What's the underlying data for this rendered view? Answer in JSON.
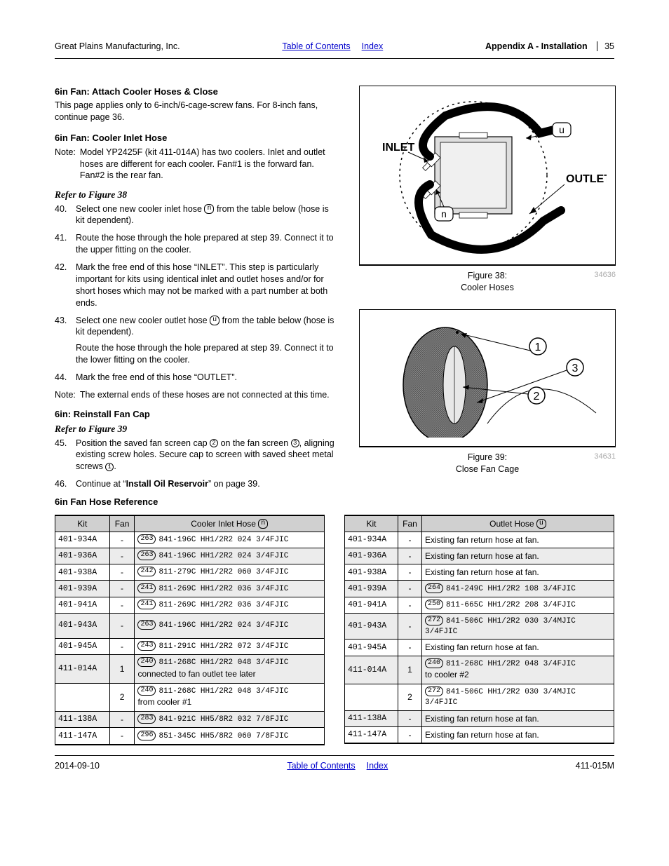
{
  "header": {
    "left": "Great Plains Manufacturing, Inc.",
    "toc_link": "Table of Contents",
    "index_link": "Index",
    "right_title": "Appendix A - Installation",
    "page_num": "35"
  },
  "left_col": {
    "sect1_title": "6in Fan: Attach Cooler Hoses & Close",
    "sect1_body": "This page applies only to 6-inch/6-cage-screw fans. For 8-inch fans, continue page 36.",
    "sect2_title": "6in Fan: Cooler Inlet Hose",
    "note1_label": "Note:",
    "note1_body": "Model YP2425F (kit 411-014A) has two coolers. Inlet and outlet hoses are different for each cooler. Fan#1 is the forward fan.\nFan#2 is the rear fan.",
    "refer38": "Refer to Figure 38",
    "steps1": [
      {
        "n": "40.",
        "t_pre": "Select one new cooler inlet hose ",
        "circ": "n",
        "t_post": " from the table below (hose is kit dependent)."
      },
      {
        "n": "41.",
        "t_pre": "Route the hose through the hole prepared at step 39. Connect it to the upper fitting on the cooler.",
        "circ": "",
        "t_post": ""
      },
      {
        "n": "42.",
        "t_pre": "Mark the free end of this hose “INLET”. This step is particularly important for kits using identical inlet and outlet hoses and/or for short hoses which may not be marked with a part number at both ends.",
        "circ": "",
        "t_post": ""
      },
      {
        "n": "43.",
        "t_pre": "Select one new cooler outlet hose ",
        "circ": "u",
        "t_post": " from the table below (hose is kit dependent).",
        "extra": "Route the hose through the hole prepared at step 39. Connect it to the lower fitting on the cooler."
      },
      {
        "n": "44.",
        "t_pre": "Mark the free end of this hose “OUTLET”.",
        "circ": "",
        "t_post": ""
      }
    ],
    "note2_label": "Note:",
    "note2_body": "The external ends of these hoses are not connected at this time.",
    "sect3_title": "6in: Reinstall Fan Cap",
    "refer39": "Refer to Figure 39",
    "steps2": [
      {
        "n": "45.",
        "t": "Position the saved fan screen cap ② on the fan screen ③, aligning existing screw holes. Secure cap to screen with saved sheet metal screws ①."
      },
      {
        "n": "46.",
        "t_pre": "Continue at “",
        "bold": "Install Oil Reservoir",
        "t_post": "” on page 39."
      }
    ],
    "sect4_title": "6in Fan Hose Reference"
  },
  "fig38": {
    "inlet_label": "INLET",
    "outlet_label": "OUTLET",
    "n_label": "n",
    "u_label": "u",
    "caption_title": "Figure 38:",
    "caption_sub": "Cooler Hoses",
    "id": "34636"
  },
  "fig39": {
    "l1": "1",
    "l2": "2",
    "l3": "3",
    "caption_title": "Figure 39:",
    "caption_sub": "Close Fan Cage",
    "id": "34631"
  },
  "table_left": {
    "headers": [
      "Kit",
      "Fan",
      "Cooler Inlet Hose ",
      "n"
    ],
    "rows": [
      {
        "kit": "401-934A",
        "fan": "-",
        "pill": "263",
        "hose": "841-196C HH1/2R2 024 3/4FJIC",
        "shade": false
      },
      {
        "kit": "401-936A",
        "fan": "-",
        "pill": "263",
        "hose": "841-196C HH1/2R2 024 3/4FJIC",
        "shade": true
      },
      {
        "kit": "401-938A",
        "fan": "-",
        "pill": "242",
        "hose": "811-279C HH1/2R2 060 3/4FJIC",
        "shade": false
      },
      {
        "kit": "401-939A",
        "fan": "-",
        "pill": "241",
        "hose": "811-269C HH1/2R2 036 3/4FJIC",
        "shade": true
      },
      {
        "kit": "401-941A",
        "fan": "-",
        "pill": "241",
        "hose": "811-269C HH1/2R2 036 3/4FJIC",
        "shade": false
      },
      {
        "kit": "401-943A",
        "fan": "-",
        "pill": "263",
        "hose": "841-196C HH1/2R2 024 3/4FJIC",
        "shade": true,
        "tall": true
      },
      {
        "kit": "401-945A",
        "fan": "-",
        "pill": "243",
        "hose": "811-291C HH1/2R2 072 3/4FJIC",
        "shade": false
      },
      {
        "kit": "411-014A",
        "fan": "1",
        "pill": "240",
        "hose": "811-268C HH1/2R2 048 3/4FJIC",
        "extra": "connected to fan outlet tee later",
        "shade": true
      },
      {
        "kit": "",
        "fan": "2",
        "pill": "240",
        "hose": "811-268C HH1/2R2 048 3/4FJIC",
        "extra": "from cooler #1",
        "shade": false
      },
      {
        "kit": "411-138A",
        "fan": "-",
        "pill": "283",
        "hose": "841-921C HH5/8R2 032 7/8FJIC",
        "shade": true
      },
      {
        "kit": "411-147A",
        "fan": "-",
        "pill": "296",
        "hose": "851-345C HH5/8R2 060 7/8FJIC",
        "shade": false
      }
    ]
  },
  "table_right": {
    "headers": [
      "Kit",
      "Fan",
      "Outlet Hose ",
      "u"
    ],
    "rows": [
      {
        "kit": "401-934A",
        "fan": "-",
        "plain": "Existing fan return hose at fan.",
        "shade": false
      },
      {
        "kit": "401-936A",
        "fan": "-",
        "plain": "Existing fan return hose at fan.",
        "shade": true
      },
      {
        "kit": "401-938A",
        "fan": "-",
        "plain": "Existing fan return hose at fan.",
        "shade": false
      },
      {
        "kit": "401-939A",
        "fan": "-",
        "pill": "264",
        "hose": "841-249C HH1/2R2 108 3/4FJIC",
        "shade": true
      },
      {
        "kit": "401-941A",
        "fan": "-",
        "pill": "250",
        "hose": "811-665C HH1/2R2 208 3/4FJIC",
        "shade": false
      },
      {
        "kit": "401-943A",
        "fan": "-",
        "pill": "272",
        "hose": "841-506C HH1/2R2 030 3/4MJIC 3/4FJIC",
        "shade": true
      },
      {
        "kit": "401-945A",
        "fan": "-",
        "plain": "Existing fan return hose at fan.",
        "shade": false
      },
      {
        "kit": "411-014A",
        "fan": "1",
        "pill": "240",
        "hose": "811-268C HH1/2R2 048 3/4FJIC",
        "extra": "to cooler #2",
        "shade": true
      },
      {
        "kit": "",
        "fan": "2",
        "pill": "272",
        "hose": "841-506C HH1/2R2 030 3/4MJIC 3/4FJIC",
        "shade": false
      },
      {
        "kit": "411-138A",
        "fan": "-",
        "plain": "Existing fan return hose at fan.",
        "shade": true
      },
      {
        "kit": "411-147A",
        "fan": "-",
        "plain": "Existing fan return hose at fan.",
        "shade": false
      }
    ]
  },
  "footer": {
    "left": "2014-09-10",
    "toc_link": "Table of Contents",
    "index_link": "Index",
    "right": "411-015M"
  }
}
